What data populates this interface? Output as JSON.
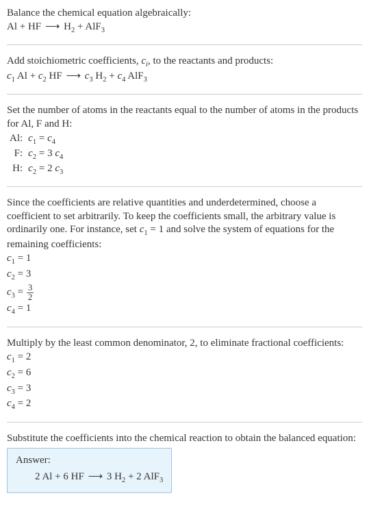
{
  "intro": {
    "line1": "Balance the chemical equation algebraically:",
    "reactants": [
      "Al",
      "HF"
    ],
    "products": [
      {
        "base": "H",
        "sub": "2"
      },
      {
        "base": "AlF",
        "sub": "3"
      }
    ],
    "arrow": "⟶"
  },
  "stoich": {
    "line1_a": "Add stoichiometric coefficients, ",
    "ci": "c",
    "ci_sub": "i",
    "line1_b": ", to the reactants and products:",
    "terms": [
      {
        "coef": "c",
        "coef_sub": "1",
        "sp": "Al",
        "sp_sub": ""
      },
      {
        "coef": "c",
        "coef_sub": "2",
        "sp": "HF",
        "sp_sub": ""
      },
      {
        "coef": "c",
        "coef_sub": "3",
        "sp": "H",
        "sp_sub": "2"
      },
      {
        "coef": "c",
        "coef_sub": "4",
        "sp": "AlF",
        "sp_sub": "3"
      }
    ]
  },
  "conserve": {
    "text": "Set the number of atoms in the reactants equal to the number of atoms in the products for Al, F and H:",
    "rows": [
      {
        "el": "Al:",
        "lhs": "c",
        "lhs_sub": "1",
        "rhs_a": "c",
        "rhs_a_sub": "4",
        "rhs_pre": ""
      },
      {
        "el": "F:",
        "lhs": "c",
        "lhs_sub": "2",
        "rhs_a": "c",
        "rhs_a_sub": "4",
        "rhs_pre": "3 "
      },
      {
        "el": "H:",
        "lhs": "c",
        "lhs_sub": "2",
        "rhs_a": "c",
        "rhs_a_sub": "3",
        "rhs_pre": "2 "
      }
    ]
  },
  "solve1": {
    "text_a": "Since the coefficients are relative quantities and underdetermined, choose a coefficient to set arbitrarily. To keep the coefficients small, the arbitrary value is ordinarily one. For instance, set ",
    "cvar": "c",
    "cvar_sub": "1",
    "text_b": " = 1 and solve the system of equations for the remaining coefficients:",
    "coefs": [
      {
        "c": "c",
        "s": "1",
        "v": "1",
        "frac": false
      },
      {
        "c": "c",
        "s": "2",
        "v": "3",
        "frac": false
      },
      {
        "c": "c",
        "s": "3",
        "num": "3",
        "den": "2",
        "frac": true
      },
      {
        "c": "c",
        "s": "4",
        "v": "1",
        "frac": false
      }
    ]
  },
  "solve2": {
    "text": "Multiply by the least common denominator, 2, to eliminate fractional coefficients:",
    "coefs": [
      {
        "c": "c",
        "s": "1",
        "v": "2"
      },
      {
        "c": "c",
        "s": "2",
        "v": "6"
      },
      {
        "c": "c",
        "s": "3",
        "v": "3"
      },
      {
        "c": "c",
        "s": "4",
        "v": "2"
      }
    ]
  },
  "final": {
    "text": "Substitute the coefficients into the chemical reaction to obtain the balanced equation:",
    "label": "Answer:",
    "lhs": [
      {
        "n": "2",
        "sp": "Al",
        "sub": ""
      },
      {
        "n": "6",
        "sp": "HF",
        "sub": ""
      }
    ],
    "rhs": [
      {
        "n": "3",
        "sp": "H",
        "sub": "2"
      },
      {
        "n": "2",
        "sp": "AlF",
        "sub": "3"
      }
    ]
  }
}
